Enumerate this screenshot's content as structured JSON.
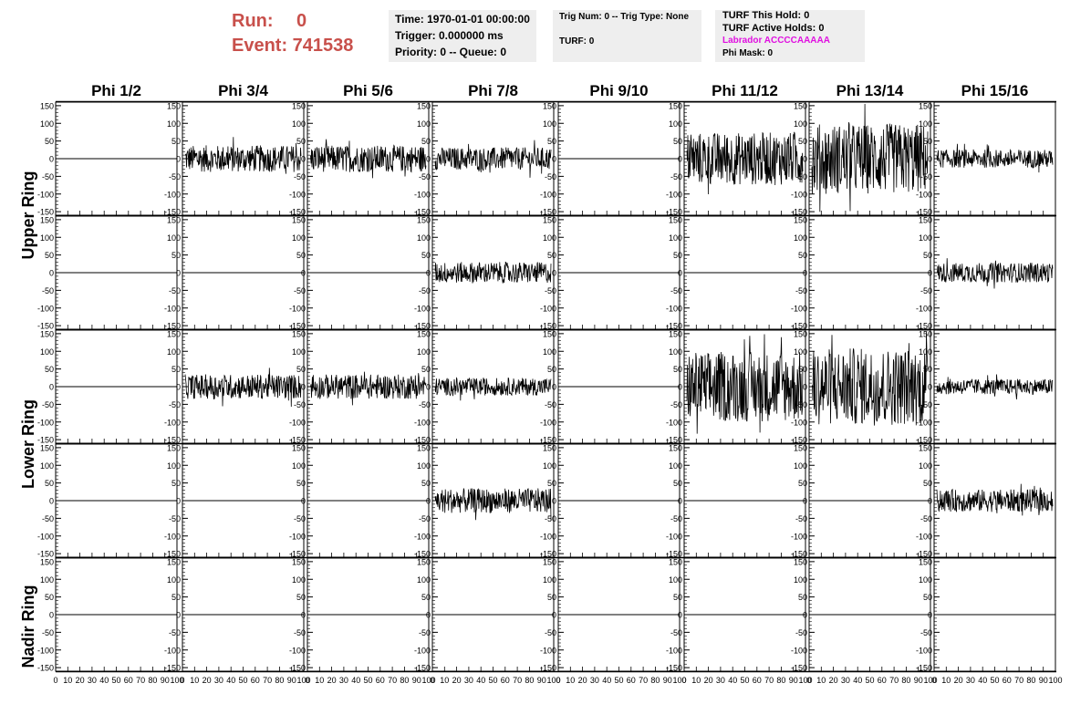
{
  "header": {
    "run_label": "Run:",
    "run_value": "0",
    "event_line": "Event: 741538",
    "color": "#c8504b"
  },
  "info_box_1": {
    "time": "Time: 1970-01-01 00:00:00",
    "trigger": "Trigger: 0.000000 ms",
    "priority": "Priority: 0 -- Queue: 0"
  },
  "info_box_2": {
    "trig": "Trig Num: 0 -- Trig Type: None",
    "turf": "TURF: 0"
  },
  "info_box_3": {
    "this_hold": "TURF This Hold: 0",
    "active_holds": "TURF Active Holds: 0",
    "labrador": "Labrador ACCCCAAAAA",
    "labrador_color": "#e010e0",
    "phi_mask": "Phi Mask: 0"
  },
  "chart_data": {
    "type": "line",
    "columns": [
      "Phi 1/2",
      "Phi 3/4",
      "Phi 5/6",
      "Phi 7/8",
      "Phi 9/10",
      "Phi 11/12",
      "Phi 13/14",
      "Phi 15/16"
    ],
    "ring_labels": [
      "Upper Ring",
      "Lower Ring",
      "Nadir Ring"
    ],
    "y_ticks": [
      150,
      100,
      50,
      0,
      -50,
      -100,
      -150
    ],
    "x_ticks": [
      0,
      10,
      20,
      30,
      40,
      50,
      60,
      70,
      80,
      90,
      100
    ],
    "ylim": [
      -160,
      160
    ],
    "xlim": [
      0,
      100
    ],
    "grid": false,
    "panel_amplitudes": [
      [
        0,
        38,
        38,
        32,
        0,
        75,
        100,
        26
      ],
      [
        0,
        0,
        0,
        30,
        0,
        0,
        0,
        28
      ],
      [
        0,
        35,
        35,
        25,
        0,
        100,
        110,
        22
      ],
      [
        0,
        0,
        0,
        35,
        0,
        0,
        0,
        32
      ],
      [
        0,
        0,
        0,
        0,
        0,
        0,
        0,
        0
      ]
    ]
  }
}
